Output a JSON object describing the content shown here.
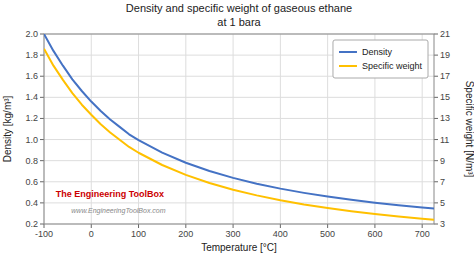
{
  "chart_data": {
    "type": "line",
    "title": "Density and specific weight of gaseous ethane",
    "subtitle": "at 1 bara",
    "x_label": "Temperature  [°C]",
    "y_label": "Density [kg/m³]",
    "y2_label": "Specific weight [N/m³]",
    "x": [
      -100,
      -80,
      -60,
      -40,
      -20,
      0,
      20,
      40,
      60,
      80,
      100,
      150,
      200,
      250,
      300,
      350,
      400,
      450,
      500,
      550,
      600,
      650,
      700,
      725
    ],
    "series": [
      {
        "name": "Density",
        "color": "#4472C4",
        "values": [
          2.0,
          1.84,
          1.7,
          1.57,
          1.46,
          1.36,
          1.27,
          1.19,
          1.12,
          1.05,
          0.995,
          0.876,
          0.78,
          0.702,
          0.637,
          0.582,
          0.535,
          0.495,
          0.46,
          0.429,
          0.402,
          0.378,
          0.357,
          0.348
        ]
      },
      {
        "name": "Specific weight",
        "color": "#FFC000",
        "axis": "y2",
        "values": [
          19.6,
          18.0,
          16.65,
          15.4,
          14.3,
          13.35,
          12.45,
          11.67,
          10.98,
          10.3,
          9.75,
          8.59,
          7.65,
          6.88,
          6.24,
          5.71,
          5.25,
          4.85,
          4.51,
          4.21,
          3.94,
          3.71,
          3.5,
          3.41
        ]
      }
    ],
    "xlim": [
      -100,
      725
    ],
    "xticks": [
      -100,
      0,
      100,
      200,
      300,
      400,
      500,
      600,
      700
    ],
    "ylim": [
      0.2,
      2.0
    ],
    "yticks": [
      0.2,
      0.4,
      0.6,
      0.8,
      {
        "value": 1.0,
        "label": "1.0"
      },
      1.2,
      1.4,
      1.6,
      1.8,
      {
        "value": 2.0,
        "label": "2.0"
      }
    ],
    "y2lim": [
      3,
      21
    ],
    "y2ticks": [
      3,
      5,
      7,
      9,
      11,
      13,
      15,
      17,
      19,
      21
    ],
    "grid": true,
    "legend": "upper right",
    "annotations": [
      {
        "text": "The Engineering ToolBox",
        "color": "#CC0000"
      },
      {
        "text": "www.EngineeringToolBox.com",
        "color": "#888888"
      }
    ]
  }
}
